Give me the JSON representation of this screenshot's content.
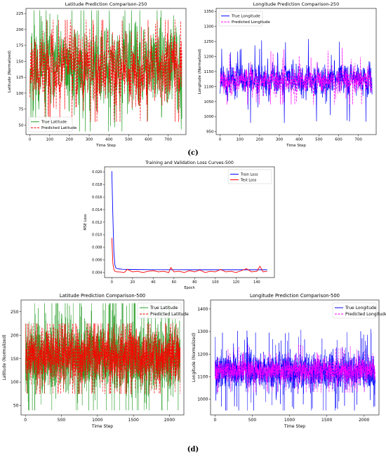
{
  "panel_labels": {
    "c": "(c)",
    "d": "(d)"
  },
  "chart_data": [
    {
      "id": "lat250",
      "type": "line",
      "title": "Latitude Prediction Comparison-250",
      "xlabel": "Time Step",
      "ylabel": "Latitude (Normalized)",
      "xlim": [
        -20,
        790
      ],
      "ylim": [
        35,
        233
      ],
      "xticks": [
        0,
        100,
        200,
        300,
        400,
        500,
        600,
        700
      ],
      "yticks": [
        50,
        75,
        100,
        125,
        150,
        175,
        200,
        225
      ],
      "legend": "lower-left",
      "grid": false,
      "n": 770,
      "series": [
        {
          "name": "True Latitude",
          "color": "#2ca02c",
          "style": "solid",
          "width": 0.7,
          "mean": 140,
          "spread": 42,
          "min": 40,
          "max": 230,
          "seed": 11
        },
        {
          "name": "Predicted Latitude",
          "color": "#ff0000",
          "style": "dashed",
          "width": 0.7,
          "mean": 140,
          "spread": 36,
          "min": 55,
          "max": 215,
          "seed": 12
        }
      ]
    },
    {
      "id": "lon250",
      "type": "line",
      "title": "Longitude Prediction Comparison-250",
      "xlabel": "Time Step",
      "ylabel": "Longitude (Normalized)",
      "xlim": [
        -20,
        790
      ],
      "ylim": [
        940,
        1360
      ],
      "xticks": [
        0,
        100,
        200,
        300,
        400,
        500,
        600,
        700
      ],
      "yticks": [
        950,
        1000,
        1050,
        1100,
        1150,
        1200,
        1250,
        1300,
        1350
      ],
      "legend": "top-left",
      "grid": false,
      "n": 770,
      "series": [
        {
          "name": "True Longitude",
          "color": "#0000ff",
          "style": "solid",
          "width": 0.7,
          "mean": 1122,
          "spread": 35,
          "min": 965,
          "max": 1340,
          "seed": 21
        },
        {
          "name": "Predicted Longitude",
          "color": "#ff00ff",
          "style": "dashed",
          "width": 0.7,
          "mean": 1122,
          "spread": 26,
          "min": 1040,
          "max": 1280,
          "seed": 22
        }
      ]
    },
    {
      "id": "loss500",
      "type": "line",
      "title": "Training and Validation Loss Curves-500",
      "xlabel": "Epoch",
      "ylabel": "MSE Loss",
      "xlim": [
        -7,
        157
      ],
      "ylim": [
        0.0032,
        0.0208
      ],
      "xticks": [
        0,
        20,
        40,
        60,
        80,
        100,
        120,
        140
      ],
      "yticks": [
        0.004,
        0.006,
        0.008,
        0.01,
        0.012,
        0.014,
        0.016,
        0.018,
        0.02
      ],
      "ytick_labels": [
        "0.004",
        "0.006",
        "0.008",
        "0.010",
        "0.012",
        "0.014",
        "0.016",
        "0.018",
        "0.020"
      ],
      "legend": "top-right",
      "grid": false,
      "series": [
        {
          "name": "Train Loss",
          "color": "#0000ff",
          "style": "solid",
          "width": 0.9,
          "x": [
            0,
            1,
            2,
            3,
            4,
            6,
            8,
            10,
            20,
            40,
            60,
            80,
            100,
            120,
            140,
            150
          ],
          "values": [
            0.0201,
            0.013,
            0.0072,
            0.0052,
            0.0047,
            0.0046,
            0.00455,
            0.00452,
            0.00448,
            0.00445,
            0.00445,
            0.00444,
            0.00444,
            0.00444,
            0.00444,
            0.00444
          ]
        },
        {
          "name": "Test Loss",
          "color": "#ff0000",
          "style": "solid",
          "width": 0.9,
          "x": [
            0,
            1,
            2,
            3,
            5,
            8,
            12,
            15,
            20,
            25,
            30,
            35,
            40,
            45,
            50,
            55,
            57,
            60,
            65,
            70,
            75,
            80,
            85,
            90,
            95,
            100,
            105,
            110,
            115,
            120,
            125,
            130,
            135,
            140,
            143,
            146,
            150
          ],
          "values": [
            0.0095,
            0.0055,
            0.0045,
            0.0042,
            0.0041,
            0.0041,
            0.004,
            0.0045,
            0.0041,
            0.0042,
            0.004,
            0.0042,
            0.0043,
            0.0041,
            0.0042,
            0.004,
            0.0048,
            0.0041,
            0.0042,
            0.004,
            0.0043,
            0.0041,
            0.0044,
            0.004,
            0.0042,
            0.0041,
            0.0045,
            0.0041,
            0.0042,
            0.004,
            0.0043,
            0.0046,
            0.0041,
            0.0042,
            0.005,
            0.0041,
            0.0042
          ]
        }
      ]
    },
    {
      "id": "lat500",
      "type": "line",
      "title": "Latitude Prediction Comparison-500",
      "xlabel": "Time Step",
      "ylabel": "Latitude (Normalized)",
      "xlim": [
        -60,
        2200
      ],
      "ylim": [
        30,
        275
      ],
      "xticks": [
        0,
        500,
        1000,
        1500,
        2000
      ],
      "yticks": [
        50,
        100,
        150,
        200,
        250
      ],
      "legend": "top-right",
      "grid": false,
      "n": 2150,
      "series": [
        {
          "name": "True Latitude",
          "color": "#2ca02c",
          "style": "solid",
          "width": 0.5,
          "mean": 155,
          "spread": 45,
          "min": 40,
          "max": 268,
          "seed": 31
        },
        {
          "name": "Predicted Latitude",
          "color": "#ff0000",
          "style": "dashed",
          "width": 0.5,
          "mean": 155,
          "spread": 34,
          "min": 75,
          "max": 225,
          "seed": 32
        }
      ]
    },
    {
      "id": "lon500",
      "type": "line",
      "title": "Longitude Prediction Comparison-500",
      "xlabel": "Time Step",
      "ylabel": "Longitude (Normalized)",
      "xlim": [
        -60,
        2200
      ],
      "ylim": [
        930,
        1440
      ],
      "xticks": [
        0,
        500,
        1000,
        1500,
        2000
      ],
      "yticks": [
        1000,
        1100,
        1200,
        1300,
        1400
      ],
      "legend": "top-right",
      "grid": false,
      "n": 2150,
      "series": [
        {
          "name": "True Longitude",
          "color": "#0000ff",
          "style": "solid",
          "width": 0.5,
          "mean": 1125,
          "spread": 45,
          "min": 950,
          "max": 1430,
          "seed": 41
        },
        {
          "name": "Predicted Longitude",
          "color": "#ff00ff",
          "style": "dashed",
          "width": 0.5,
          "mean": 1125,
          "spread": 30,
          "min": 1030,
          "max": 1280,
          "seed": 42
        }
      ]
    }
  ]
}
